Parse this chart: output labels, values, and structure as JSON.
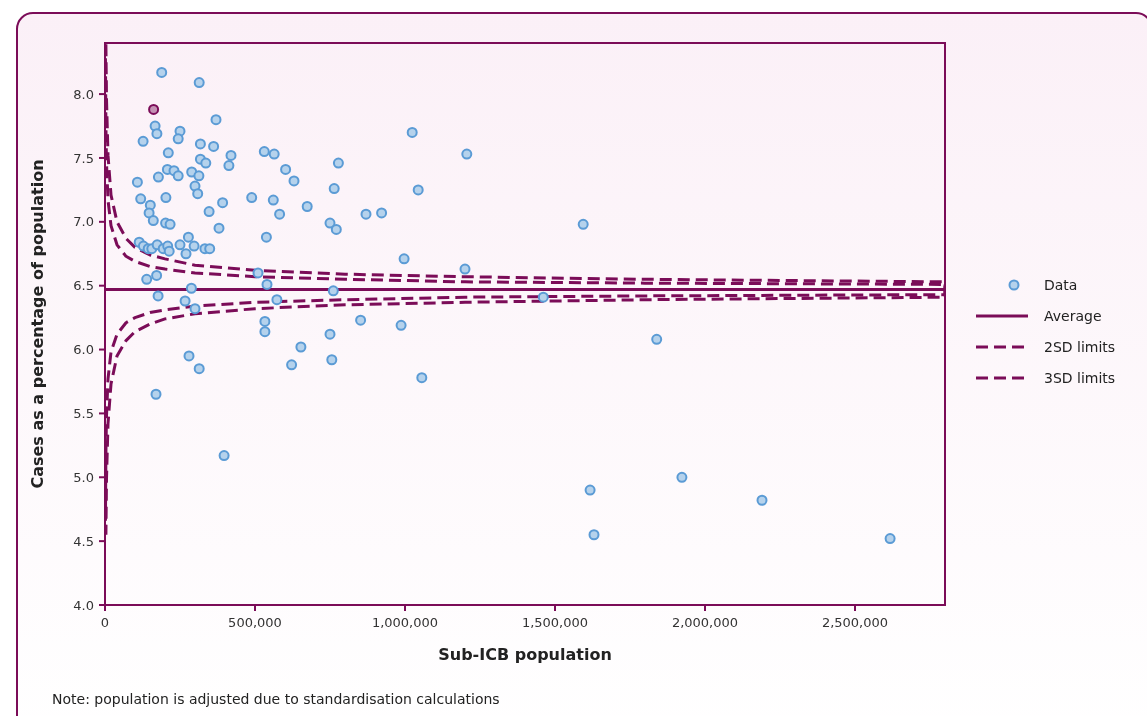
{
  "chart_data": {
    "type": "scatter",
    "xlabel": "Sub-ICB population",
    "ylabel": "Cases as a percentage of population",
    "xlim": [
      0,
      2800000
    ],
    "ylim": [
      4.0,
      8.4
    ],
    "xticks": [
      0,
      {
        "value": 500000,
        "label": "500,000"
      },
      {
        "value": 1000000,
        "label": "1,000,000"
      },
      {
        "value": 1500000,
        "label": "1,500,000"
      },
      {
        "value": 2000000,
        "label": "2,000,000"
      },
      {
        "value": 2500000,
        "label": "2,500,000"
      }
    ],
    "yticks": [
      {
        "value": 4,
        "label": "4.0"
      },
      {
        "value": 4.5,
        "label": "4.5"
      },
      {
        "value": 5,
        "label": "5.0"
      },
      {
        "value": 5.5,
        "label": "5.5"
      },
      {
        "value": 6,
        "label": "6.0"
      },
      {
        "value": 6.5,
        "label": "6.5"
      },
      {
        "value": 7,
        "label": "7.0"
      },
      {
        "value": 7.5,
        "label": "7.5"
      },
      {
        "value": 8,
        "label": "8.0"
      }
    ],
    "grid": false,
    "legend": "right",
    "marker": "circle",
    "annotations": [
      "Note: population is adjusted due to standardisation calculations"
    ],
    "series": [
      {
        "name": "Data",
        "color": "#5b9bd5",
        "x": [
          189000,
          314000,
          370000,
          167000,
          173000,
          250000,
          244000,
          127000,
          318000,
          362000,
          211000,
          420000,
          318000,
          336000,
          413000,
          108000,
          178000,
          208000,
          230000,
          244000,
          289000,
          313000,
          300000,
          309000,
          119000,
          203000,
          151000,
          147000,
          392000,
          161000,
          347000,
          202000,
          217000,
          380000,
          278000,
          114000,
          128000,
          144000,
          156000,
          174000,
          194000,
          209000,
          214000,
          250000,
          270000,
          297000,
          333000,
          349000,
          538000,
          489000,
          561000,
          582000,
          531000,
          564000,
          602000,
          630000,
          139000,
          172000,
          510000,
          540000,
          177000,
          288000,
          267000,
          300000,
          573000,
          533000,
          533000,
          170000,
          280000,
          314000,
          397000,
          622000,
          1024000,
          1206000,
          778000,
          764000,
          1044000,
          674000,
          870000,
          922000,
          750000,
          771000,
          997000,
          1200000,
          761000,
          852000,
          987000,
          750000,
          653000,
          756000,
          1056000,
          1594000,
          1461000,
          1839000,
          1617000,
          1630000,
          1923000,
          2190000,
          2617000
        ],
        "values": [
          8.17,
          8.09,
          7.8,
          7.75,
          7.69,
          7.71,
          7.65,
          7.63,
          7.61,
          7.59,
          7.54,
          7.52,
          7.49,
          7.46,
          7.44,
          7.31,
          7.35,
          7.41,
          7.4,
          7.36,
          7.39,
          7.36,
          7.28,
          7.22,
          7.18,
          7.19,
          7.13,
          7.07,
          7.15,
          7.01,
          7.08,
          6.99,
          6.98,
          6.95,
          6.88,
          6.84,
          6.81,
          6.79,
          6.79,
          6.82,
          6.79,
          6.81,
          6.77,
          6.82,
          6.75,
          6.81,
          6.79,
          6.79,
          6.88,
          7.19,
          7.17,
          7.06,
          7.55,
          7.53,
          7.41,
          7.32,
          6.55,
          6.58,
          6.6,
          6.51,
          6.42,
          6.48,
          6.38,
          6.32,
          6.39,
          6.22,
          6.14,
          5.65,
          5.95,
          5.85,
          5.17,
          5.88,
          7.7,
          7.53,
          7.46,
          7.26,
          7.25,
          7.12,
          7.06,
          7.07,
          6.99,
          6.94,
          6.71,
          6.63,
          6.46,
          6.23,
          6.19,
          6.12,
          6.02,
          5.92,
          5.78,
          6.98,
          6.41,
          6.08,
          4.9,
          4.55,
          5.0,
          4.82,
          4.52
        ]
      },
      {
        "color": "#7b0c58",
        "x": [
          162000
        ],
        "values": [
          7.88
        ]
      },
      {
        "name": "Average",
        "type": "line",
        "color": "#7b0c58",
        "line_style": "solid",
        "marker": "none",
        "x": [
          0,
          2800000
        ],
        "values": [
          6.47,
          6.47
        ]
      },
      {
        "name": "2SD limits",
        "type": "line",
        "color": "#7b0c58",
        "line_style": "dashed",
        "marker": "none",
        "x": [
          1500,
          3000,
          5000,
          10000,
          20000,
          40000,
          70000,
          100000,
          150000,
          200000,
          300000,
          500000,
          800000,
          1200000,
          1800000,
          2800000,
          2800000,
          1800000,
          1200000,
          800000,
          500000,
          300000,
          200000,
          150000,
          100000,
          70000,
          40000,
          20000,
          10000,
          5000,
          3000,
          1500
        ],
        "values": [
          8.28,
          7.75,
          7.46,
          7.17,
          6.97,
          6.82,
          6.73,
          6.69,
          6.65,
          6.63,
          6.6,
          6.57,
          6.55,
          6.53,
          6.52,
          6.51,
          6.43,
          6.42,
          6.41,
          6.39,
          6.37,
          6.34,
          6.31,
          6.29,
          6.25,
          6.21,
          6.12,
          5.98,
          5.77,
          5.48,
          5.19,
          4.66
        ]
      },
      {
        "name": "3SD limits",
        "type": "line",
        "color": "#7b0c58",
        "line_style": "dashed",
        "marker": "none",
        "x": [
          3000,
          5000,
          10000,
          20000,
          40000,
          70000,
          100000,
          150000,
          200000,
          300000,
          500000,
          800000,
          1200000,
          1800000,
          2800000,
          2800000,
          1800000,
          1200000,
          800000,
          500000,
          300000,
          200000,
          150000,
          100000,
          70000,
          40000,
          20000,
          10000,
          5000,
          3000
        ],
        "values": [
          8.39,
          7.96,
          7.52,
          7.21,
          7.0,
          6.87,
          6.8,
          6.74,
          6.71,
          6.66,
          6.62,
          6.59,
          6.57,
          6.55,
          6.53,
          6.41,
          6.39,
          6.37,
          6.35,
          6.32,
          6.28,
          6.24,
          6.2,
          6.14,
          6.07,
          5.95,
          5.73,
          5.42,
          4.99,
          4.55
        ]
      }
    ]
  }
}
